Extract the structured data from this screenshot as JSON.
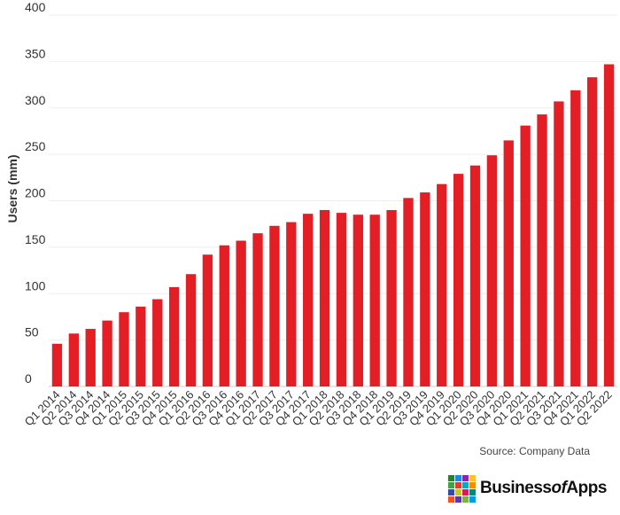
{
  "chart_data": {
    "type": "bar",
    "ylabel": "Users (mm)",
    "ylim": [
      0,
      400
    ],
    "yticks": [
      0,
      50,
      100,
      150,
      200,
      250,
      300,
      350,
      400
    ],
    "grid": true,
    "bar_color": "#e31e24",
    "categories": [
      "Q1 2014",
      "Q2 2014",
      "Q3 2014",
      "Q4 2014",
      "Q1 2015",
      "Q2 2015",
      "Q3 2015",
      "Q4 2015",
      "Q1 2016",
      "Q2 2016",
      "Q3 2016",
      "Q4 2016",
      "Q1 2017",
      "Q2 2017",
      "Q3 2017",
      "Q4 2017",
      "Q1 2018",
      "Q2 2018",
      "Q3 2018",
      "Q4 2018",
      "Q1 2019",
      "Q2 2019",
      "Q3 2019",
      "Q4 2019",
      "Q1 2020",
      "Q2 2020",
      "Q3 2020",
      "Q4 2020",
      "Q1 2021",
      "Q2 2021",
      "Q3 2021",
      "Q4 2021",
      "Q1 2022",
      "Q2 2022"
    ],
    "values": [
      46,
      57,
      62,
      71,
      80,
      86,
      94,
      107,
      121,
      142,
      152,
      157,
      165,
      173,
      177,
      186,
      190,
      187,
      185,
      185,
      190,
      203,
      209,
      218,
      229,
      238,
      249,
      265,
      281,
      293,
      307,
      319,
      333,
      347
    ]
  },
  "source": "Source: Company Data",
  "brand": {
    "name_part1": "Business",
    "name_part2": "of",
    "name_part3": "Apps",
    "logo_colors": [
      "#2e7d32",
      "#1e88e5",
      "#8e24aa",
      "#fbc02d",
      "#43a047",
      "#e53935",
      "#00acc1",
      "#fb8c00",
      "#3949ab",
      "#c0ca33",
      "#d81b60",
      "#00897b",
      "#f4511e",
      "#5e35b1",
      "#7cb342",
      "#039be5"
    ]
  }
}
